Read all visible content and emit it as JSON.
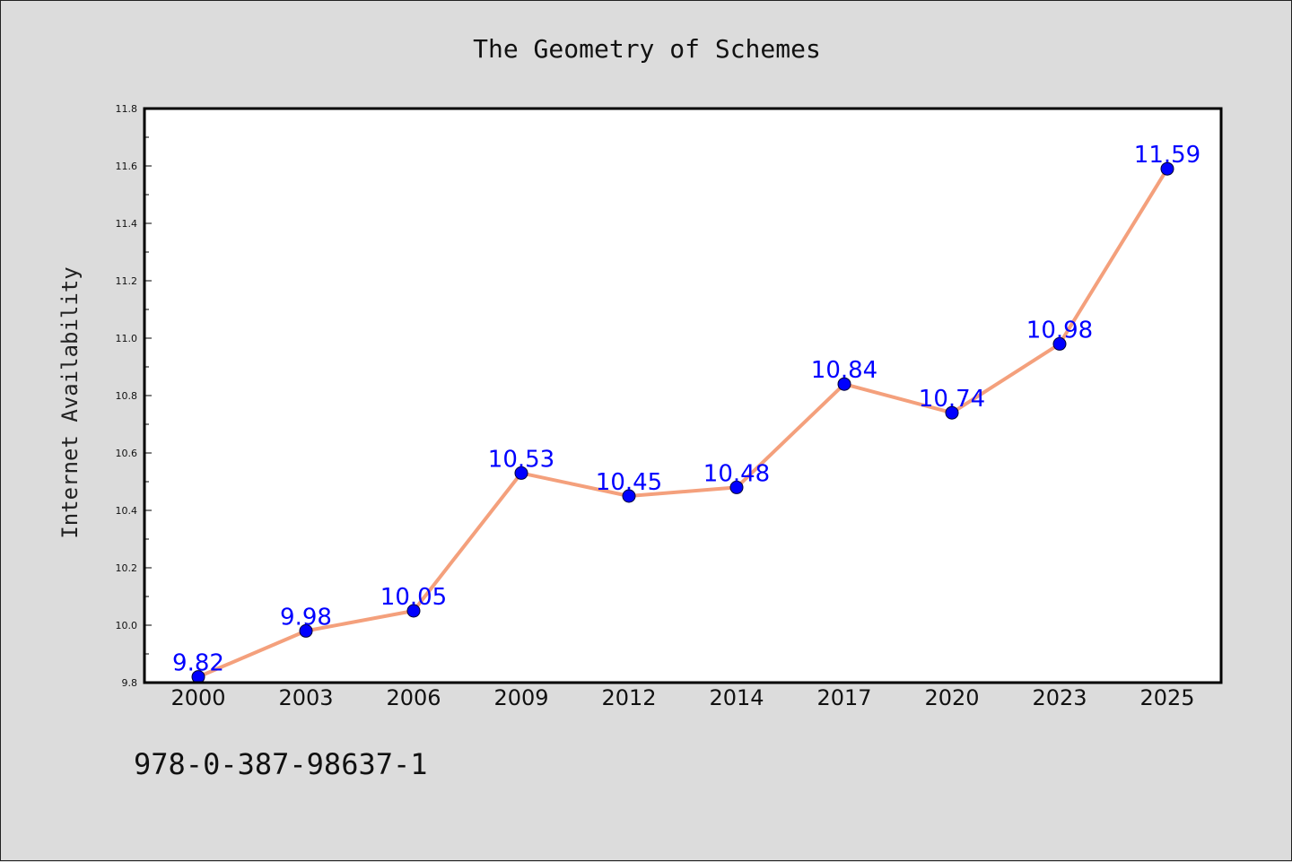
{
  "chart_data": {
    "type": "line",
    "title": "The Geometry of Schemes",
    "xlabel": "",
    "ylabel": "Internet Availability",
    "categories": [
      "2000",
      "2003",
      "2006",
      "2009",
      "2012",
      "2014",
      "2017",
      "2020",
      "2023",
      "2025"
    ],
    "series": [
      {
        "values": [
          9.82,
          9.98,
          10.05,
          10.53,
          10.45,
          10.48,
          10.84,
          10.74,
          10.98,
          11.59
        ],
        "labels": [
          "9.82",
          "9.98",
          "10.05",
          "10.53",
          "10.45",
          "10.48",
          "10.84",
          "10.74",
          "10.98",
          "11.59"
        ]
      }
    ],
    "ylim": [
      9.8,
      11.8
    ],
    "yticks": [
      "9.8",
      "10.0",
      "10.2",
      "10.4",
      "10.6",
      "10.8",
      "11.0",
      "11.2",
      "11.4",
      "11.6",
      "11.8"
    ],
    "grid": false,
    "legend": "none",
    "colors": {
      "line": "#f4a07c",
      "marker": "#0000ff",
      "data_label": "#0000ff",
      "background": "#dcdcdc",
      "plot_area": "#ffffff"
    }
  },
  "footer": {
    "isbn": "978-0-387-98637-1"
  }
}
